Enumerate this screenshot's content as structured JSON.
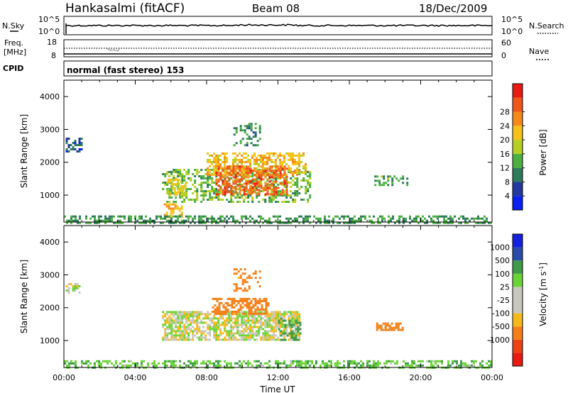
{
  "header": {
    "station": "Hankasalmi (fitACF)",
    "beam": "Beam 08",
    "date": "18/Dec/2009"
  },
  "mode_text": "normal (fast stereo) 153",
  "labels": {
    "nsky": "N.Sky",
    "freq_top": "Freq.",
    "freq_unit": "[MHz]",
    "cpid": "CPID",
    "nsearch": "N.Search",
    "nave": "Nave",
    "nsky_hi": "10^5",
    "nsky_lo": "10^0",
    "nsearch_hi": "10^5",
    "nsearch_lo": "10^0",
    "freq_hi": "18",
    "freq_lo": "8",
    "nave_hi": "60",
    "nave_lo": "0",
    "xlabel": "Time UT",
    "ylabel": "Slant Range [km]",
    "power_label": "Power [dB]",
    "velocity_label": "Velocity [m s"
  },
  "colors": {
    "power": [
      "#0a1ff2",
      "#24389e",
      "#2f7a5a",
      "#4bb040",
      "#b6cf22",
      "#f5c21a",
      "#f58a1a",
      "#f0561a",
      "#e81a12"
    ],
    "velocity": [
      "#e81a12",
      "#ee4216",
      "#f5801a",
      "#f5ba1a",
      "#c8c8c0",
      "#c8c8c0",
      "#6ad436",
      "#3f9a4a",
      "#2a4ca8",
      "#1620e0"
    ]
  },
  "chart_data": [
    {
      "type": "heatmap",
      "panel": "power",
      "x_ticks": [
        "00:00",
        "04:00",
        "08:00",
        "12:00",
        "16:00",
        "20:00",
        "00:00"
      ],
      "xlim_hours": [
        0,
        24
      ],
      "ylim_km": [
        180,
        4500
      ],
      "y_ticks": [
        1000,
        2000,
        3000,
        4000
      ],
      "colorbar_ticks": [
        "4",
        "8",
        "12",
        "16",
        "20",
        "24",
        "28"
      ],
      "colorbar_range_db": [
        0,
        32
      ],
      "regions": [
        {
          "t": [
            0.1,
            1.0
          ],
          "r": [
            2350,
            2750
          ],
          "v": 5,
          "d": 0.55
        },
        {
          "t": [
            5.5,
            13.8
          ],
          "r": [
            800,
            1800
          ],
          "v": 13,
          "d": 0.45
        },
        {
          "t": [
            8.0,
            13.5
          ],
          "r": [
            1600,
            2300
          ],
          "v": 20,
          "d": 0.6
        },
        {
          "t": [
            8.5,
            12.5
          ],
          "r": [
            1000,
            1900
          ],
          "v": 27,
          "d": 0.55
        },
        {
          "t": [
            5.8,
            6.8
          ],
          "r": [
            1000,
            1500
          ],
          "v": 18,
          "d": 0.55
        },
        {
          "t": [
            9.5,
            11.0
          ],
          "r": [
            2500,
            3200
          ],
          "v": 9,
          "d": 0.35
        },
        {
          "t": [
            5.6,
            6.6
          ],
          "r": [
            350,
            750
          ],
          "v": 21,
          "d": 0.45
        },
        {
          "t": [
            17.4,
            19.2
          ],
          "r": [
            1300,
            1600
          ],
          "v": 11,
          "d": 0.5
        },
        {
          "t": [
            0.0,
            24.0
          ],
          "r": [
            180,
            380
          ],
          "v": 10,
          "d": 0.5
        }
      ]
    },
    {
      "type": "heatmap",
      "panel": "velocity",
      "x_ticks": [
        "00:00",
        "04:00",
        "08:00",
        "12:00",
        "16:00",
        "20:00",
        "00:00"
      ],
      "xlim_hours": [
        0,
        24
      ],
      "ylim_km": [
        180,
        4500
      ],
      "y_ticks": [
        1000,
        2000,
        3000,
        4000
      ],
      "colorbar_ticks": [
        "1000",
        "500",
        "100",
        "25",
        "-25",
        "-100",
        "-500",
        "-1000"
      ],
      "regions": [
        {
          "t": [
            0.1,
            0.9
          ],
          "r": [
            2450,
            2750
          ],
          "v": 0,
          "d": 0.6
        },
        {
          "t": [
            5.5,
            13.2
          ],
          "r": [
            1000,
            1900
          ],
          "v": 0,
          "d": 0.75
        },
        {
          "t": [
            8.3,
            11.5
          ],
          "r": [
            1800,
            2300
          ],
          "v": -300,
          "d": 0.6
        },
        {
          "t": [
            9.5,
            11.0
          ],
          "r": [
            2500,
            3200
          ],
          "v": -150,
          "d": 0.35
        },
        {
          "t": [
            12.0,
            13.2
          ],
          "r": [
            1000,
            1700
          ],
          "v": 150,
          "d": 0.5
        },
        {
          "t": [
            17.5,
            19.0
          ],
          "r": [
            1300,
            1550
          ],
          "v": -300,
          "d": 0.75
        },
        {
          "t": [
            0.0,
            24.0
          ],
          "r": [
            180,
            400
          ],
          "v": 80,
          "d": 0.5
        }
      ]
    }
  ]
}
